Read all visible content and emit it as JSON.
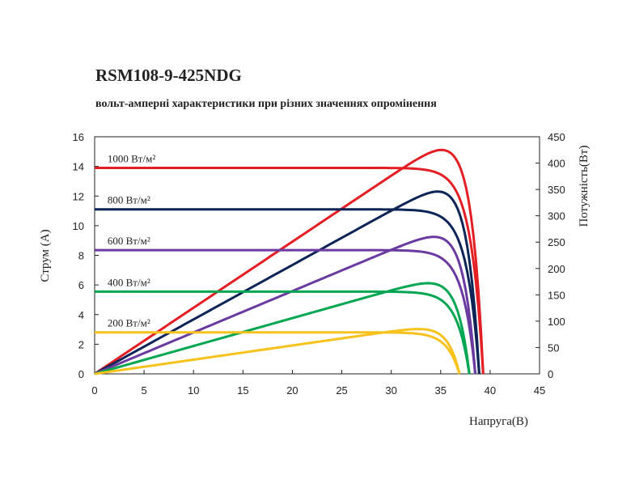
{
  "chart_data": {
    "type": "line",
    "title": "RSM108-9-425NDG",
    "subtitle": "вольт-амперні характеристики при різних значеннях опромінення",
    "xlabel": "Напруга(В)",
    "ylabel": "Струм (А)",
    "y2label": "Потужність(Вт)",
    "xlim": [
      0,
      45
    ],
    "ylim": [
      0,
      16
    ],
    "y2lim": [
      0,
      450
    ],
    "xticks": [
      "0",
      "5",
      "10",
      "15",
      "20",
      "25",
      "30",
      "35",
      "40",
      "45"
    ],
    "yticks": [
      "0",
      "2",
      "4",
      "6",
      "8",
      "10",
      "12",
      "14",
      "16"
    ],
    "y2ticks": [
      "0",
      "50",
      "100",
      "150",
      "200",
      "250",
      "300",
      "350",
      "400",
      "450"
    ],
    "grid": false,
    "series": [
      {
        "name": "1000 Вт/м²",
        "color": "#e31e24",
        "isc": 13.9,
        "voc": 39.3,
        "pmax": 425,
        "vmp": 32.3
      },
      {
        "name": "800 Вт/м²",
        "color": "#0d2457",
        "isc": 11.1,
        "voc": 38.9,
        "pmax": 346,
        "vmp": 32.6
      },
      {
        "name": "600 Вт/м²",
        "color": "#6a3aa0",
        "isc": 8.35,
        "voc": 38.5,
        "pmax": 260,
        "vmp": 32.6
      },
      {
        "name": "400 Вт/м²",
        "color": "#00a651",
        "isc": 5.55,
        "voc": 37.9,
        "pmax": 172,
        "vmp": 32.4
      },
      {
        "name": "200 Вт/м²",
        "color": "#f7c21b",
        "isc": 2.8,
        "voc": 36.9,
        "pmax": 85,
        "vmp": 32.0
      }
    ]
  }
}
